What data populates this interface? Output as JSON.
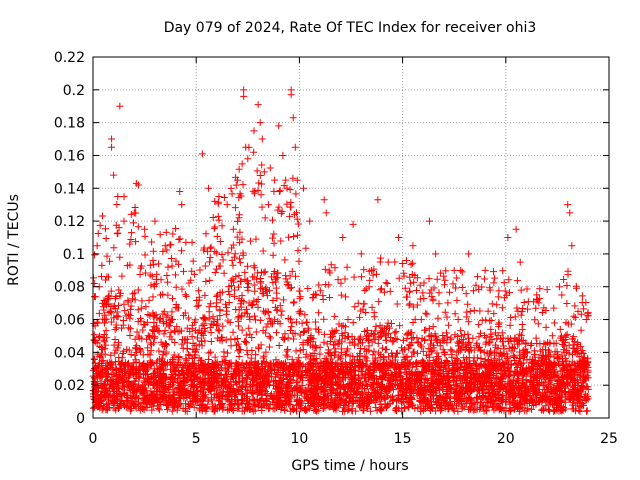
{
  "chart_data": {
    "type": "scatter",
    "title": "Day 079 of 2024, Rate Of TEC Index for receiver ohi3",
    "xlabel": "GPS time / hours",
    "ylabel": "ROTI / TECUs",
    "xlim": [
      0,
      25
    ],
    "ylim": [
      0,
      0.22
    ],
    "xticks": [
      0,
      5,
      10,
      15,
      20,
      25
    ],
    "xtick_labels": [
      "0",
      "5",
      "10",
      "15",
      "20",
      "25"
    ],
    "yticks": [
      0,
      0.02,
      0.04,
      0.06,
      0.08,
      0.1,
      0.12,
      0.14,
      0.16,
      0.18,
      0.2,
      0.22
    ],
    "ytick_labels": [
      "0",
      "0.02",
      "0.04",
      "0.06",
      "0.08",
      "0.1",
      "0.12",
      "0.14",
      "0.16",
      "0.18",
      "0.2",
      "0.22"
    ],
    "grid": true,
    "marker": "+",
    "marker_color": "#ff0000",
    "envelope": {
      "description_hours": [
        0,
        1,
        2,
        3,
        4,
        5,
        6,
        7,
        7.5,
        8,
        9,
        9.5,
        10,
        10.7,
        11,
        12,
        13,
        14,
        15,
        16,
        17,
        18,
        19,
        20,
        21,
        22,
        23,
        24
      ],
      "typical_max": [
        0.09,
        0.12,
        0.11,
        0.09,
        0.1,
        0.08,
        0.11,
        0.13,
        0.15,
        0.14,
        0.13,
        0.15,
        0.11,
        0.06,
        0.07,
        0.08,
        0.07,
        0.08,
        0.08,
        0.07,
        0.07,
        0.07,
        0.07,
        0.07,
        0.06,
        0.06,
        0.07,
        0.05
      ]
    },
    "series": [
      {
        "name": "",
        "points": [
          [
            0.2,
            0.105
          ],
          [
            0.3,
            0.08
          ],
          [
            0.9,
            0.17
          ],
          [
            0.9,
            0.165
          ],
          [
            1.3,
            0.19
          ],
          [
            1.0,
            0.148
          ],
          [
            1.2,
            0.135
          ],
          [
            1.5,
            0.12
          ],
          [
            2.1,
            0.143
          ],
          [
            2.2,
            0.142
          ],
          [
            2.0,
            0.125
          ],
          [
            2.5,
            0.115
          ],
          [
            3.0,
            0.12
          ],
          [
            3.5,
            0.105
          ],
          [
            4.2,
            0.138
          ],
          [
            4.3,
            0.13
          ],
          [
            4.5,
            0.107
          ],
          [
            4.8,
            0.107
          ],
          [
            5.3,
            0.161
          ],
          [
            5.6,
            0.14
          ],
          [
            5.9,
            0.132
          ],
          [
            6.1,
            0.135
          ],
          [
            6.5,
            0.13
          ],
          [
            6.8,
            0.115
          ],
          [
            7.0,
            0.145
          ],
          [
            7.3,
            0.2
          ],
          [
            7.3,
            0.196
          ],
          [
            7.4,
            0.165
          ],
          [
            7.5,
            0.158
          ],
          [
            7.8,
            0.175
          ],
          [
            8.0,
            0.191
          ],
          [
            8.1,
            0.18
          ],
          [
            8.2,
            0.17
          ],
          [
            8.3,
            0.15
          ],
          [
            8.5,
            0.13
          ],
          [
            8.8,
            0.145
          ],
          [
            9.0,
            0.178
          ],
          [
            9.2,
            0.16
          ],
          [
            9.4,
            0.14
          ],
          [
            9.6,
            0.2
          ],
          [
            9.6,
            0.197
          ],
          [
            9.7,
            0.183
          ],
          [
            9.8,
            0.165
          ],
          [
            9.9,
            0.145
          ],
          [
            10.2,
            0.14
          ],
          [
            10.5,
            0.12
          ],
          [
            11.2,
            0.133
          ],
          [
            11.3,
            0.125
          ],
          [
            12.1,
            0.11
          ],
          [
            12.6,
            0.118
          ],
          [
            13.0,
            0.1
          ],
          [
            13.8,
            0.133
          ],
          [
            14.3,
            0.095
          ],
          [
            14.8,
            0.11
          ],
          [
            15.5,
            0.105
          ],
          [
            16.3,
            0.12
          ],
          [
            16.6,
            0.1
          ],
          [
            17.5,
            0.09
          ],
          [
            18.2,
            0.1
          ],
          [
            19.0,
            0.09
          ],
          [
            20.1,
            0.11
          ],
          [
            20.5,
            0.115
          ],
          [
            20.7,
            0.095
          ],
          [
            21.5,
            0.075
          ],
          [
            22.6,
            0.08
          ],
          [
            23.0,
            0.13
          ],
          [
            23.1,
            0.125
          ],
          [
            23.2,
            0.105
          ],
          [
            23.5,
            0.065
          ],
          [
            23.9,
            0.06
          ]
        ]
      }
    ]
  }
}
